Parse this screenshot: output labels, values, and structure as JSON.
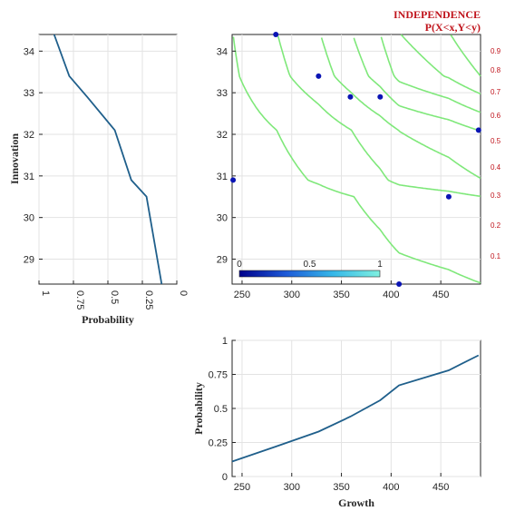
{
  "chart_data": [
    {
      "type": "line",
      "panel": "left-marginal",
      "xlabel": "Probability",
      "ylabel": "Innovation",
      "xlim": [
        1,
        0
      ],
      "ylim": [
        28.4,
        34.4
      ],
      "xticks": [
        "1",
        "0.75",
        "0.5",
        "0.25",
        "0"
      ],
      "yticks": [
        "29",
        "30",
        "31",
        "32",
        "33",
        "34"
      ],
      "grid": true,
      "color": "#1f5f8b",
      "points": [
        {
          "p": 0.89,
          "y": 34.4
        },
        {
          "p": 0.78,
          "y": 33.4
        },
        {
          "p": 0.65,
          "y": 32.9
        },
        {
          "p": 0.45,
          "y": 32.1
        },
        {
          "p": 0.33,
          "y": 30.9
        },
        {
          "p": 0.22,
          "y": 30.5
        },
        {
          "p": 0.11,
          "y": 28.4
        }
      ]
    },
    {
      "type": "scatter",
      "panel": "joint",
      "title": "INDEPENDENCE",
      "subtitle": "P(X<x,Y<y)",
      "xlim": [
        240,
        490
      ],
      "ylim": [
        28.4,
        34.4
      ],
      "xticks": [
        "250",
        "300",
        "350",
        "400",
        "450"
      ],
      "yticks": [
        "29",
        "30",
        "31",
        "32",
        "33",
        "34"
      ],
      "grid": true,
      "point_color": "#0a14b4",
      "points": [
        {
          "x": 284,
          "y": 34.4
        },
        {
          "x": 327,
          "y": 33.4
        },
        {
          "x": 359,
          "y": 32.9
        },
        {
          "x": 389,
          "y": 32.9
        },
        {
          "x": 488,
          "y": 32.1
        },
        {
          "x": 241,
          "y": 30.9
        },
        {
          "x": 458,
          "y": 30.5
        },
        {
          "x": 408,
          "y": 28.4
        }
      ],
      "contour_levels": [
        0.1,
        0.2,
        0.3,
        0.4,
        0.5,
        0.6,
        0.7,
        0.8,
        0.9
      ],
      "contour_color": "#7fe87a",
      "right_axis": {
        "color": "#c0141c",
        "ticks": [
          "0.1",
          "0.2",
          "0.3",
          "0.4",
          "0.5",
          "0.6",
          "0.7",
          "0.8",
          "0.9"
        ]
      },
      "colorbar": {
        "ticks": [
          "0",
          "0.5",
          "1"
        ],
        "colors": [
          "#00008b",
          "#1e5bd8",
          "#36b8e8",
          "#7ff0e0"
        ]
      }
    },
    {
      "type": "line",
      "panel": "bottom-marginal",
      "xlabel": "Growth",
      "ylabel": "Probability",
      "xlim": [
        240,
        490
      ],
      "ylim": [
        0,
        1
      ],
      "xticks": [
        "250",
        "300",
        "350",
        "400",
        "450"
      ],
      "yticks": [
        "0",
        "0.25",
        "0.5",
        "0.75",
        "1"
      ],
      "grid": true,
      "color": "#1f5f8b",
      "points": [
        {
          "x": 240,
          "p": 0.11
        },
        {
          "x": 284,
          "p": 0.22
        },
        {
          "x": 327,
          "p": 0.33
        },
        {
          "x": 359,
          "p": 0.44
        },
        {
          "x": 389,
          "p": 0.56
        },
        {
          "x": 408,
          "p": 0.67
        },
        {
          "x": 458,
          "p": 0.78
        },
        {
          "x": 488,
          "p": 0.89
        }
      ]
    }
  ]
}
